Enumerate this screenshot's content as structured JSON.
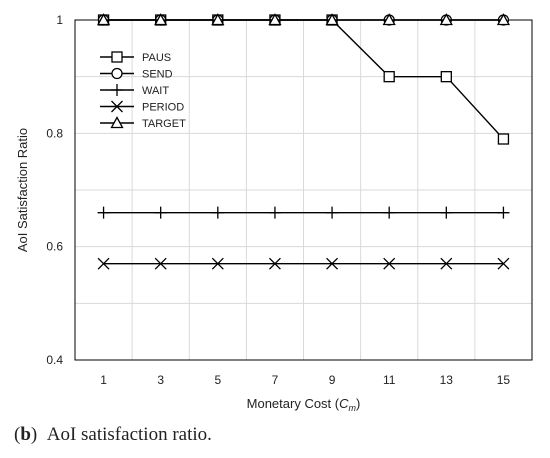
{
  "chart_data": {
    "type": "line",
    "x": [
      1,
      3,
      5,
      7,
      9,
      11,
      13,
      15
    ],
    "xlabel_prefix": "Monetary Cost (",
    "xlabel_var": "C",
    "xlabel_sub": "m",
    "xlabel_suffix": ")",
    "ylabel": "AoI Satisfaction Ratio",
    "xlim": [
      0,
      16
    ],
    "ylim": [
      0.4,
      1.0
    ],
    "yticks": [
      "0.4",
      "0.6",
      "0.8",
      "1"
    ],
    "xticks": [
      "1",
      "3",
      "5",
      "7",
      "9",
      "11",
      "13",
      "15"
    ],
    "grid": true,
    "legend_position": "top-left",
    "series": [
      {
        "name": "PAUS",
        "marker": "square",
        "values": [
          1,
          1,
          1,
          1,
          1,
          0.9,
          0.9,
          0.79
        ]
      },
      {
        "name": "SEND",
        "marker": "circle",
        "values": [
          1,
          1,
          1,
          1,
          1,
          1,
          1,
          1
        ]
      },
      {
        "name": "WAIT",
        "marker": "plus",
        "values": [
          0.66,
          0.66,
          0.66,
          0.66,
          0.66,
          0.66,
          0.66,
          0.66
        ]
      },
      {
        "name": "PERIOD",
        "marker": "x",
        "values": [
          0.57,
          0.57,
          0.57,
          0.57,
          0.57,
          0.57,
          0.57,
          0.57
        ]
      },
      {
        "name": "TARGET",
        "marker": "triangle",
        "values": [
          1,
          1,
          1,
          1,
          1,
          1,
          1,
          1
        ]
      }
    ]
  },
  "caption": {
    "label": "b",
    "text": "AoI satisfaction ratio."
  }
}
